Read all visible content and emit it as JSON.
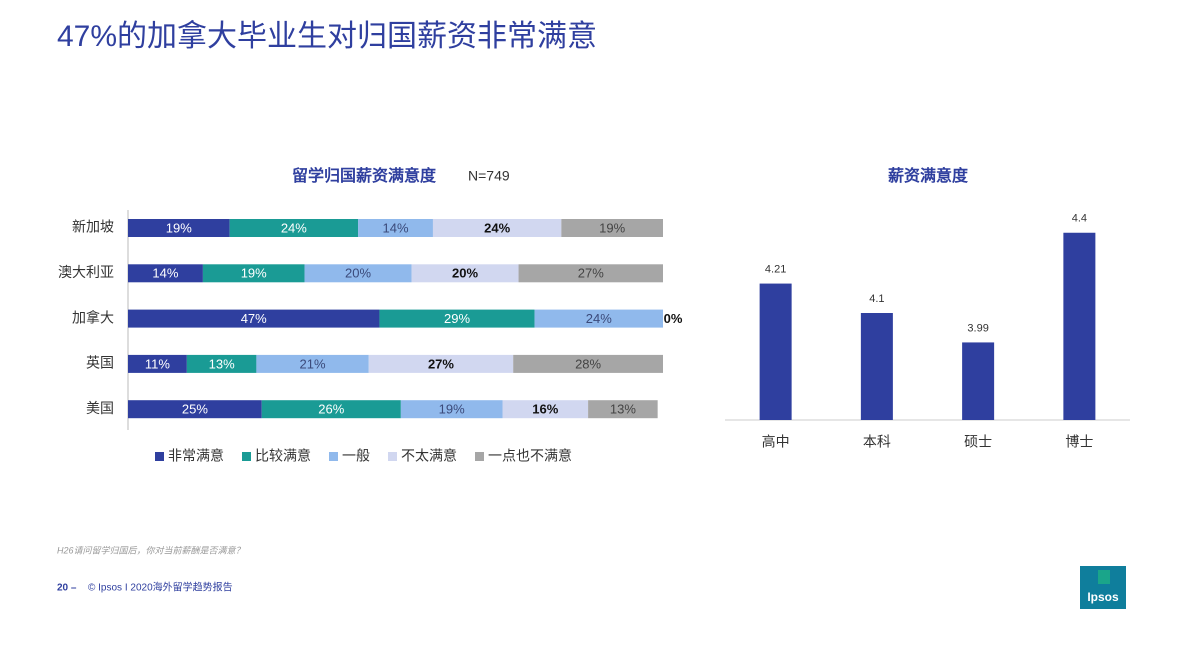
{
  "title": "47%的加拿大毕业生对归国薪资非常满意",
  "chart_data": [
    {
      "type": "stacked-hbar",
      "title": "留学归国薪资满意度",
      "subtitle": "N=749",
      "categories": [
        "新加坡",
        "澳大利亚",
        "加拿大",
        "英国",
        "美国"
      ],
      "xlim": [
        0,
        100
      ],
      "series": [
        {
          "name": "非常满意",
          "color": "#2f3f9f",
          "label_color": "#ffffff",
          "values": [
            19,
            14,
            47,
            11,
            25
          ],
          "value_labels": [
            "19%",
            "14%",
            "47%",
            "11%",
            "25%"
          ]
        },
        {
          "name": "比较满意",
          "color": "#1a9b95",
          "label_color": "#ffffff",
          "values": [
            24,
            19,
            29,
            13,
            26
          ],
          "value_labels": [
            "24%",
            "19%",
            "29%",
            "13%",
            "26%"
          ]
        },
        {
          "name": "一般",
          "color": "#90b9ec",
          "label_color": "#3b4a7a",
          "values": [
            14,
            20,
            24,
            21,
            19
          ],
          "value_labels": [
            "14%",
            "20%",
            "24%",
            "21%",
            "19%"
          ]
        },
        {
          "name": "不太满意",
          "color": "#d1d7f0",
          "label_color": "#111111",
          "values": [
            24,
            20,
            0,
            27,
            16
          ],
          "value_labels": [
            "24%",
            "20%",
            "0%",
            "27%",
            "16%"
          ]
        },
        {
          "name": "一点也不满意",
          "color": "#a6a6a6",
          "label_color": "#444444",
          "values": [
            19,
            27,
            null,
            28,
            13
          ],
          "value_labels": [
            "19%",
            "27%",
            null,
            "28%",
            "13%"
          ]
        }
      ]
    },
    {
      "type": "bar",
      "title": "薪资满意度",
      "categories": [
        "高中",
        "本科",
        "硕士",
        "博士"
      ],
      "values": [
        4.21,
        4.1,
        3.99,
        4.4
      ],
      "color": "#2f3f9f",
      "ylim": [
        3.7,
        4.5
      ]
    }
  ],
  "footnote": "H26请问留学归国后，你对当前薪酬是否满意？",
  "page_number": "20 –",
  "footer": "© Ipsos I 2020海外留学趋势报告",
  "logo": "Ipsos"
}
